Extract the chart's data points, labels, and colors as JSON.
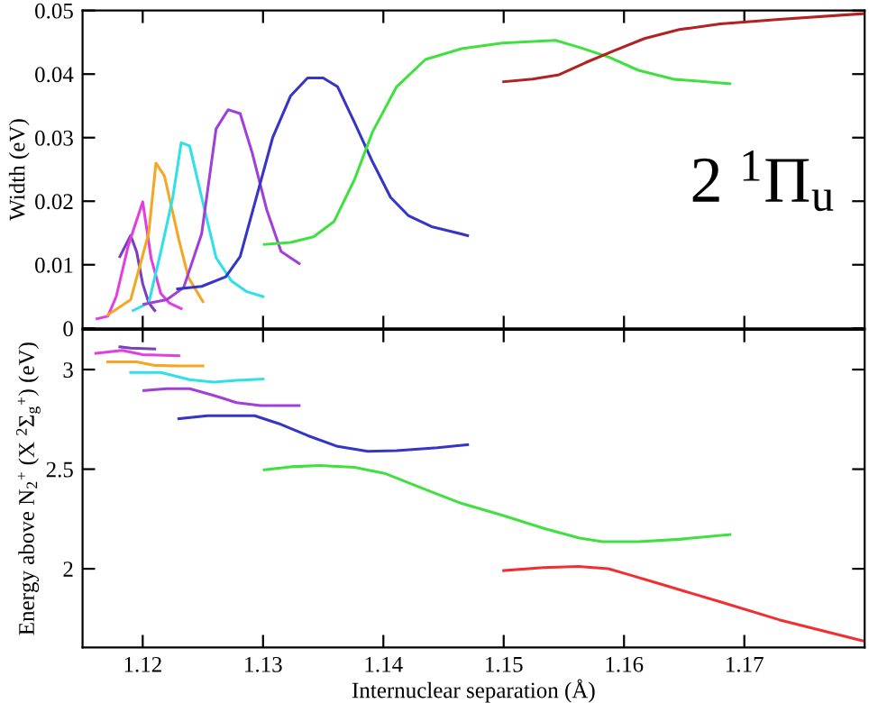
{
  "chart_data": [
    {
      "type": "line",
      "ylabel": "Width (eV)",
      "xlim": [
        1.115,
        1.18
      ],
      "xticks": [
        1.12,
        1.13,
        1.14,
        1.15,
        1.16,
        1.17
      ],
      "ylim": [
        0,
        0.05
      ],
      "yticks": [
        0,
        0.01,
        0.02,
        0.03,
        0.04,
        0.05
      ],
      "tick_labels": "y",
      "grid": false,
      "legend": false,
      "marker": "none",
      "line_style": "solid",
      "annotations": [
        "2 $^{1}$Π$_{u}$"
      ],
      "series": [
        {
          "color": "#7a3fc0",
          "x": [
            1.1181,
            1.119,
            1.1195,
            1.12,
            1.1205,
            1.121
          ],
          "values": [
            0.0113,
            0.0146,
            0.012,
            0.007,
            0.004,
            0.0028
          ]
        },
        {
          "color": "#e040e0",
          "x": [
            1.1162,
            1.1171,
            1.1178,
            1.1188,
            1.12,
            1.1207,
            1.1215,
            1.1222,
            1.1232
          ],
          "values": [
            0.0015,
            0.0019,
            0.005,
            0.013,
            0.0199,
            0.011,
            0.0055,
            0.004,
            0.0031
          ]
        },
        {
          "color": "#f5a623",
          "x": [
            1.1171,
            1.119,
            1.1205,
            1.1211,
            1.1218,
            1.123,
            1.1238,
            1.125
          ],
          "values": [
            0.0021,
            0.0045,
            0.015,
            0.026,
            0.024,
            0.014,
            0.008,
            0.0042
          ]
        },
        {
          "color": "#30e0e8",
          "x": [
            1.1192,
            1.1205,
            1.1215,
            1.1225,
            1.1232,
            1.1239,
            1.1249,
            1.1261,
            1.1274,
            1.1286,
            1.13
          ],
          "values": [
            0.0028,
            0.004,
            0.012,
            0.0206,
            0.0292,
            0.0287,
            0.0206,
            0.0111,
            0.0074,
            0.0058,
            0.005
          ]
        },
        {
          "color": "#a040d8",
          "x": [
            1.1201,
            1.122,
            1.1234,
            1.1249,
            1.1261,
            1.1271,
            1.1281,
            1.1291,
            1.1303,
            1.1315,
            1.133
          ],
          "values": [
            0.0038,
            0.0045,
            0.0064,
            0.0149,
            0.0314,
            0.0344,
            0.0338,
            0.0276,
            0.0187,
            0.0121,
            0.0102
          ]
        },
        {
          "color": "#3535c8",
          "x": [
            1.1229,
            1.1249,
            1.1269,
            1.1281,
            1.1293,
            1.1308,
            1.1323,
            1.1337,
            1.135,
            1.1362,
            1.1376,
            1.1391,
            1.1406,
            1.1421,
            1.144,
            1.147
          ],
          "values": [
            0.0062,
            0.0066,
            0.0081,
            0.0113,
            0.0196,
            0.03,
            0.0366,
            0.0394,
            0.0394,
            0.038,
            0.0324,
            0.0262,
            0.0206,
            0.0177,
            0.016,
            0.0146
          ]
        },
        {
          "color": "#40e040",
          "x": [
            1.1301,
            1.1323,
            1.1342,
            1.1359,
            1.1376,
            1.1391,
            1.1411,
            1.1435,
            1.1465,
            1.1499,
            1.1543,
            1.1563,
            1.1587,
            1.1612,
            1.1641,
            1.1688
          ],
          "values": [
            0.0132,
            0.0135,
            0.0144,
            0.0168,
            0.0234,
            0.0309,
            0.038,
            0.0423,
            0.044,
            0.0449,
            0.0453,
            0.0442,
            0.0427,
            0.0406,
            0.0392,
            0.0385
          ]
        },
        {
          "color": "#b22222",
          "x": [
            1.15,
            1.1524,
            1.1546,
            1.1568,
            1.1592,
            1.1617,
            1.1646,
            1.168,
            1.1729,
            1.1798
          ],
          "values": [
            0.0388,
            0.0392,
            0.0399,
            0.0418,
            0.0437,
            0.0456,
            0.047,
            0.0479,
            0.0486,
            0.0495
          ]
        }
      ]
    },
    {
      "type": "line",
      "xlabel": "Internuclear separation (Å)",
      "ylabel": "Energy above N$_{2}$$^{+}$ (X $^{2}$Σ$_{g}$$^{+}$) (eV)",
      "xlim": [
        1.115,
        1.18
      ],
      "xticks": [
        1.12,
        1.13,
        1.14,
        1.15,
        1.16,
        1.17
      ],
      "ylim": [
        1.605,
        3.2
      ],
      "yticks": [
        2,
        2.5,
        3
      ],
      "grid": false,
      "legend": false,
      "marker": "none",
      "line_style": "solid",
      "series": [
        {
          "color": "#7a3fc0",
          "x": [
            1.1181,
            1.119,
            1.121
          ],
          "values": [
            3.114,
            3.108,
            3.103
          ]
        },
        {
          "color": "#e040e0",
          "x": [
            1.1161,
            1.1183,
            1.12,
            1.123
          ],
          "values": [
            3.081,
            3.096,
            3.075,
            3.069
          ]
        },
        {
          "color": "#f5a623",
          "x": [
            1.1171,
            1.1195,
            1.121,
            1.1229,
            1.125
          ],
          "values": [
            3.039,
            3.039,
            3.021,
            3.018,
            3.018
          ]
        },
        {
          "color": "#30e0e8",
          "x": [
            1.119,
            1.1215,
            1.1239,
            1.1259,
            1.1278,
            1.13
          ],
          "values": [
            2.985,
            2.985,
            2.949,
            2.937,
            2.946,
            2.952
          ]
        },
        {
          "color": "#a040d8",
          "x": [
            1.1201,
            1.122,
            1.1239,
            1.1259,
            1.1278,
            1.1298,
            1.133
          ],
          "values": [
            2.895,
            2.904,
            2.904,
            2.87,
            2.834,
            2.819,
            2.819
          ]
        },
        {
          "color": "#3535c8",
          "x": [
            1.123,
            1.1254,
            1.1293,
            1.1313,
            1.1337,
            1.1362,
            1.1387,
            1.1411,
            1.1445,
            1.147
          ],
          "values": [
            2.753,
            2.768,
            2.768,
            2.729,
            2.669,
            2.614,
            2.59,
            2.593,
            2.608,
            2.623
          ]
        },
        {
          "color": "#40e040",
          "x": [
            1.1301,
            1.1323,
            1.1347,
            1.1376,
            1.1401,
            1.1435,
            1.1465,
            1.1499,
            1.1534,
            1.1563,
            1.1582,
            1.1612,
            1.1646,
            1.1688
          ],
          "values": [
            2.497,
            2.512,
            2.518,
            2.509,
            2.479,
            2.398,
            2.328,
            2.268,
            2.202,
            2.154,
            2.136,
            2.136,
            2.148,
            2.172
          ]
        },
        {
          "color": "#f03030",
          "x": [
            1.15,
            1.1533,
            1.1562,
            1.1587,
            1.1606,
            1.1631,
            1.168,
            1.1729,
            1.1798
          ],
          "values": [
            1.991,
            2.006,
            2.012,
            2.0,
            1.967,
            1.922,
            1.834,
            1.744,
            1.639
          ]
        }
      ]
    }
  ]
}
